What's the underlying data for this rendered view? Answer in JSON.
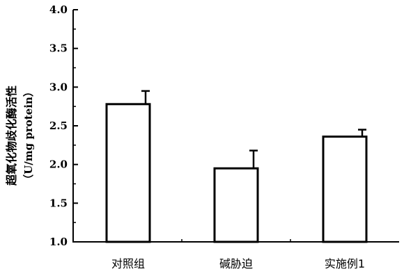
{
  "chart_data": {
    "type": "bar",
    "categories": [
      "对照组",
      "碱胁迫",
      "实施例1"
    ],
    "values": [
      2.78,
      1.95,
      2.36
    ],
    "errors": [
      0.17,
      0.23,
      0.09
    ],
    "ylabel": "超氧化物歧化酶活性",
    "ylabel_unit": "（U/mg protein）",
    "ylim": [
      1.0,
      4.0
    ],
    "yticks": [
      "1.0",
      "1.5",
      "2.0",
      "2.5",
      "3.0",
      "3.5",
      "4.0"
    ],
    "grid": false,
    "bar_fill": "#ffffff",
    "bar_stroke": "#000000"
  }
}
